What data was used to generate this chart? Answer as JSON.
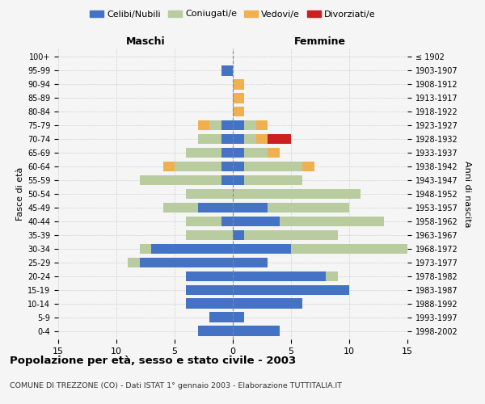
{
  "age_groups": [
    "0-4",
    "5-9",
    "10-14",
    "15-19",
    "20-24",
    "25-29",
    "30-34",
    "35-39",
    "40-44",
    "45-49",
    "50-54",
    "55-59",
    "60-64",
    "65-69",
    "70-74",
    "75-79",
    "80-84",
    "85-89",
    "90-94",
    "95-99",
    "100+"
  ],
  "birth_years": [
    "1998-2002",
    "1993-1997",
    "1988-1992",
    "1983-1987",
    "1978-1982",
    "1973-1977",
    "1968-1972",
    "1963-1967",
    "1958-1962",
    "1953-1957",
    "1948-1952",
    "1943-1947",
    "1938-1942",
    "1933-1937",
    "1928-1932",
    "1923-1927",
    "1918-1922",
    "1913-1917",
    "1908-1912",
    "1903-1907",
    "≤ 1902"
  ],
  "maschi": {
    "celibi": [
      3,
      2,
      4,
      4,
      4,
      8,
      7,
      0,
      1,
      3,
      0,
      1,
      1,
      1,
      1,
      1,
      0,
      0,
      0,
      1,
      0
    ],
    "coniugati": [
      0,
      0,
      0,
      0,
      0,
      1,
      1,
      4,
      3,
      3,
      4,
      7,
      4,
      3,
      2,
      1,
      0,
      0,
      0,
      0,
      0
    ],
    "vedovi": [
      0,
      0,
      0,
      0,
      0,
      0,
      0,
      0,
      0,
      0,
      0,
      0,
      1,
      0,
      0,
      1,
      0,
      0,
      0,
      0,
      0
    ],
    "divorziati": [
      0,
      0,
      0,
      0,
      0,
      0,
      0,
      0,
      0,
      0,
      0,
      0,
      0,
      0,
      0,
      0,
      0,
      0,
      0,
      0,
      0
    ]
  },
  "femmine": {
    "nubili": [
      4,
      1,
      6,
      10,
      8,
      3,
      5,
      1,
      4,
      3,
      0,
      1,
      1,
      1,
      1,
      1,
      0,
      0,
      0,
      0,
      0
    ],
    "coniugate": [
      0,
      0,
      0,
      0,
      1,
      0,
      12,
      8,
      9,
      7,
      11,
      5,
      5,
      2,
      1,
      1,
      0,
      0,
      0,
      0,
      0
    ],
    "vedove": [
      0,
      0,
      0,
      0,
      0,
      0,
      0,
      0,
      0,
      0,
      0,
      0,
      1,
      1,
      1,
      1,
      1,
      1,
      1,
      0,
      0
    ],
    "divorziate": [
      0,
      0,
      0,
      0,
      0,
      0,
      0,
      0,
      0,
      0,
      0,
      0,
      0,
      0,
      2,
      0,
      0,
      0,
      0,
      0,
      0
    ]
  },
  "colors": {
    "celibi_nubili": "#4472c4",
    "coniugati": "#b8cca0",
    "vedovi": "#f0b050",
    "divorziati": "#cc2020"
  },
  "xlim": 15,
  "title": "Popolazione per età, sesso e stato civile - 2003",
  "subtitle": "COMUNE DI TREZZONE (CO) - Dati ISTAT 1° gennaio 2003 - Elaborazione TUTTITALIA.IT",
  "ylabel_left": "Fasce di età",
  "ylabel_right": "Anni di nascita",
  "xlabel_left": "Maschi",
  "xlabel_right": "Femmine",
  "legend_labels": [
    "Celibi/Nubili",
    "Coniugati/e",
    "Vedovi/e",
    "Divorziati/e"
  ],
  "background_color": "#f5f5f5"
}
